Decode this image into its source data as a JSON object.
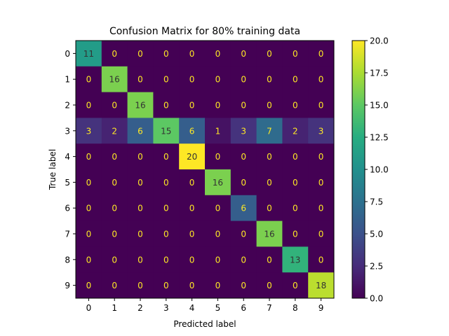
{
  "chart_data": {
    "type": "heatmap",
    "title": "Confusion Matrix for 80% training data",
    "xlabel": "Predicted label",
    "ylabel": "True label",
    "x_tick_labels": [
      "0",
      "1",
      "2",
      "3",
      "4",
      "5",
      "6",
      "7",
      "8",
      "9"
    ],
    "y_tick_labels": [
      "0",
      "1",
      "2",
      "3",
      "4",
      "5",
      "6",
      "7",
      "8",
      "9"
    ],
    "matrix": [
      [
        11,
        0,
        0,
        0,
        0,
        0,
        0,
        0,
        0,
        0
      ],
      [
        0,
        16,
        0,
        0,
        0,
        0,
        0,
        0,
        0,
        0
      ],
      [
        0,
        0,
        16,
        0,
        0,
        0,
        0,
        0,
        0,
        0
      ],
      [
        3,
        2,
        6,
        15,
        6,
        1,
        3,
        7,
        2,
        3
      ],
      [
        0,
        0,
        0,
        0,
        20,
        0,
        0,
        0,
        0,
        0
      ],
      [
        0,
        0,
        0,
        0,
        0,
        16,
        0,
        0,
        0,
        0
      ],
      [
        0,
        0,
        0,
        0,
        0,
        0,
        6,
        0,
        0,
        0
      ],
      [
        0,
        0,
        0,
        0,
        0,
        0,
        0,
        16,
        0,
        0
      ],
      [
        0,
        0,
        0,
        0,
        0,
        0,
        0,
        0,
        13,
        0
      ],
      [
        0,
        0,
        0,
        0,
        0,
        0,
        0,
        0,
        0,
        18
      ]
    ],
    "colormap": "viridis",
    "color_range": [
      0.0,
      20.0
    ],
    "colorbar_ticks": [
      "0.0",
      "2.5",
      "5.0",
      "7.5",
      "10.0",
      "12.5",
      "15.0",
      "17.5",
      "20.0"
    ],
    "text_color_dark_cells": "#fde725",
    "text_color_light_cells": "#333333",
    "grid": false
  }
}
